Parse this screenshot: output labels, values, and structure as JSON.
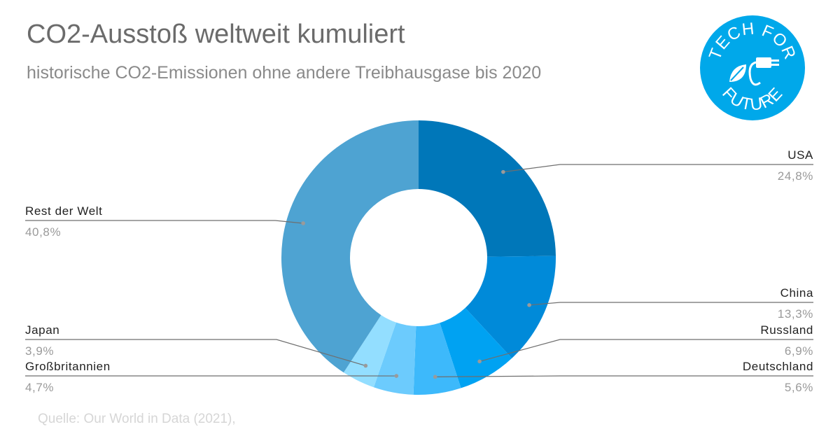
{
  "chart_data": {
    "type": "pie",
    "title": "CO2-Ausstoß weltweit kumuliert",
    "subtitle": "historische CO2-Emissionen ohne andere Treibhausgase bis 2020",
    "source": "Quelle: Our World in Data (2021),",
    "slices": [
      {
        "label": "USA",
        "value": 24.8,
        "value_label": "24,8%",
        "color": "#0077b9",
        "side": "right"
      },
      {
        "label": "China",
        "value": 13.3,
        "value_label": "13,3%",
        "color": "#008ad9",
        "side": "right"
      },
      {
        "label": "Russland",
        "value": 6.9,
        "value_label": "6,9%",
        "color": "#00a2f2",
        "side": "right"
      },
      {
        "label": "Deutschland",
        "value": 5.6,
        "value_label": "5,6%",
        "color": "#3db9fb",
        "side": "right"
      },
      {
        "label": "Großbritannien",
        "value": 4.7,
        "value_label": "4,7%",
        "color": "#6ccbfd",
        "side": "left"
      },
      {
        "label": "Japan",
        "value": 3.9,
        "value_label": "3,9%",
        "color": "#93deff",
        "side": "left"
      },
      {
        "label": "Rest der Welt",
        "value": 40.8,
        "value_label": "40,8%",
        "color": "#4ea3d2",
        "side": "left"
      }
    ]
  },
  "logo": {
    "top_text": "TECH FOR",
    "bottom_text": "FUTURE",
    "color": "#00a8ea",
    "icons": [
      "leaf-icon",
      "plug-icon"
    ]
  }
}
